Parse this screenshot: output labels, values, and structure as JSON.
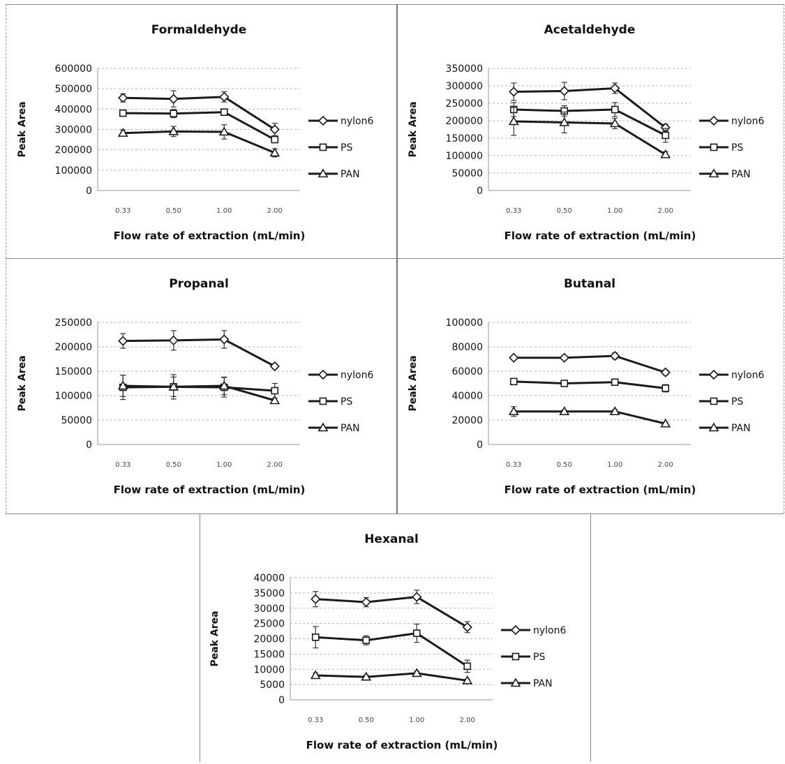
{
  "chart_data": [
    {
      "type": "line",
      "title": "Formaldehyde",
      "xlabel": "Flow rate of extraction (mL/min)",
      "ylabel": "Peak Area",
      "categories": [
        "0.33",
        "0.50",
        "1.00",
        "2.00"
      ],
      "yticks": [
        "600000",
        "500000",
        "400000",
        "300000",
        "200000",
        "100000",
        "0"
      ],
      "ylim": [
        0,
        600000
      ],
      "grid": true,
      "legend": "right",
      "series": [
        {
          "name": "nylon6",
          "marker": "diamond",
          "values": [
            455000,
            450000,
            460000,
            300000
          ],
          "errors": [
            20000,
            40000,
            25000,
            30000
          ]
        },
        {
          "name": "PS",
          "marker": "square",
          "values": [
            380000,
            378000,
            385000,
            250000
          ],
          "errors": [
            15000,
            20000,
            15000,
            15000
          ]
        },
        {
          "name": "PAN",
          "marker": "triangle",
          "values": [
            282000,
            290000,
            288000,
            185000
          ],
          "errors": [
            15000,
            25000,
            35000,
            20000
          ]
        }
      ]
    },
    {
      "type": "line",
      "title": "Acetaldehyde",
      "xlabel": "Flow rate of extraction (mL/min)",
      "ylabel": "Peak Area",
      "categories": [
        "0.33",
        "0.50",
        "1.00",
        "2.00"
      ],
      "yticks": [
        "350000",
        "300000",
        "250000",
        "200000",
        "150000",
        "100000",
        "50000",
        "0"
      ],
      "ylim": [
        0,
        350000
      ],
      "grid": true,
      "legend": "right",
      "series": [
        {
          "name": "nylon6",
          "marker": "diamond",
          "values": [
            283000,
            285000,
            293000,
            180000
          ],
          "errors": [
            25000,
            25000,
            15000,
            10000
          ]
        },
        {
          "name": "PS",
          "marker": "square",
          "values": [
            232000,
            228000,
            232000,
            158000
          ],
          "errors": [
            20000,
            15000,
            20000,
            20000
          ]
        },
        {
          "name": "PAN",
          "marker": "triangle",
          "values": [
            198000,
            195000,
            192000,
            103000
          ],
          "errors": [
            40000,
            30000,
            15000,
            8000
          ]
        }
      ]
    },
    {
      "type": "line",
      "title": "Propanal",
      "xlabel": "Flow rate of extraction (mL/min)",
      "ylabel": "Peak Area",
      "categories": [
        "0.33",
        "0.50",
        "1.00",
        "2.00"
      ],
      "yticks": [
        "250000",
        "200000",
        "150000",
        "100000",
        "50000",
        "0"
      ],
      "ylim": [
        0,
        250000
      ],
      "grid": true,
      "legend": "right",
      "series": [
        {
          "name": "nylon6",
          "marker": "diamond",
          "values": [
            212000,
            213000,
            215000,
            160000
          ],
          "errors": [
            15000,
            20000,
            18000,
            5000
          ]
        },
        {
          "name": "PS",
          "marker": "square",
          "values": [
            117000,
            118000,
            117000,
            110000
          ],
          "errors": [
            25000,
            20000,
            20000,
            15000
          ]
        },
        {
          "name": "PAN",
          "marker": "triangle",
          "values": [
            120000,
            118000,
            120000,
            90000
          ],
          "errors": [
            22000,
            25000,
            18000,
            5000
          ]
        }
      ]
    },
    {
      "type": "line",
      "title": "Butanal",
      "xlabel": "Flow rate of extraction (mL/min)",
      "ylabel": "Peak Area",
      "categories": [
        "0.33",
        "0.50",
        "1.00",
        "2.00"
      ],
      "yticks": [
        "100000",
        "80000",
        "60000",
        "40000",
        "20000",
        "0"
      ],
      "ylim": [
        0,
        100000
      ],
      "grid": true,
      "legend": "right",
      "series": [
        {
          "name": "nylon6",
          "marker": "diamond",
          "values": [
            71000,
            71000,
            72500,
            59000
          ],
          "errors": [
            1500,
            1500,
            2500,
            2000
          ]
        },
        {
          "name": "PS",
          "marker": "square",
          "values": [
            51500,
            50000,
            51000,
            46000
          ],
          "errors": [
            1500,
            1500,
            1500,
            3000
          ]
        },
        {
          "name": "PAN",
          "marker": "triangle",
          "values": [
            27000,
            27000,
            27000,
            17000
          ],
          "errors": [
            4000,
            1000,
            1500,
            1000
          ]
        }
      ]
    },
    {
      "type": "line",
      "title": "Hexanal",
      "xlabel": "Flow rate of extraction (mL/min)",
      "ylabel": "Peak Area",
      "categories": [
        "0.33",
        "0.50",
        "1.00",
        "2.00"
      ],
      "yticks": [
        "40000",
        "35000",
        "30000",
        "25000",
        "20000",
        "15000",
        "10000",
        "5000",
        "0"
      ],
      "ylim": [
        0,
        40000
      ],
      "grid": true,
      "legend": "right",
      "series": [
        {
          "name": "nylon6",
          "marker": "diamond",
          "values": [
            33000,
            32000,
            33700,
            23800
          ],
          "errors": [
            2500,
            1500,
            2200,
            1800
          ]
        },
        {
          "name": "PS",
          "marker": "square",
          "values": [
            20500,
            19500,
            21800,
            11000
          ],
          "errors": [
            3500,
            1500,
            3000,
            2000
          ]
        },
        {
          "name": "PAN",
          "marker": "triangle",
          "values": [
            8000,
            7500,
            8700,
            6300
          ],
          "errors": [
            800,
            500,
            700,
            500
          ]
        }
      ]
    }
  ]
}
